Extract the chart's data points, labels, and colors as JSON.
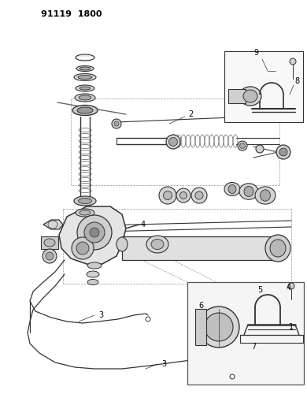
{
  "title": "91119  1800",
  "bg_color": "#ffffff",
  "lc": "#333333",
  "gc": "#777777",
  "dc": "#aaaaaa"
}
